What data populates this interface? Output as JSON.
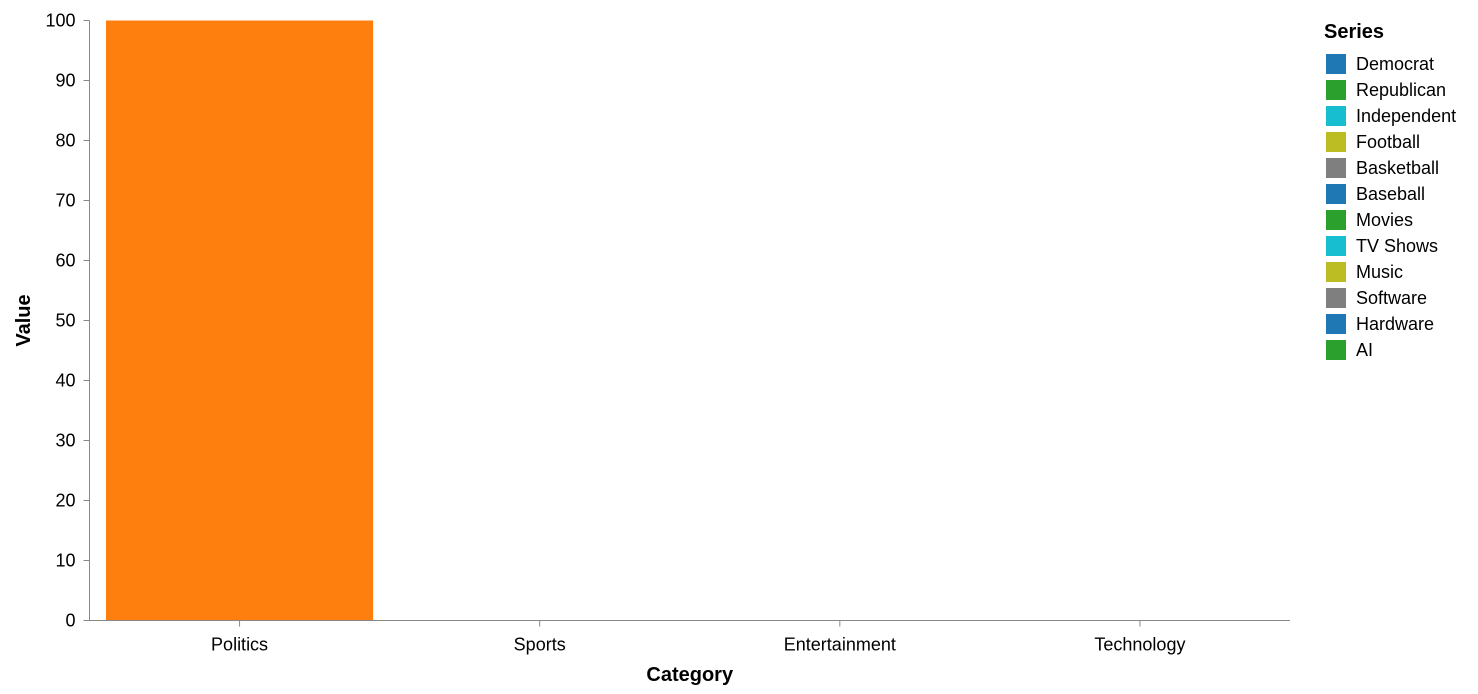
{
  "chart_data": {
    "type": "bar",
    "xlabel": "Category",
    "ylabel": "Value",
    "categories": [
      "Politics",
      "Sports",
      "Entertainment",
      "Technology"
    ],
    "values": [
      100,
      0,
      0,
      0
    ],
    "bar_color": "#ff7f0e",
    "ylim": [
      0,
      100
    ],
    "yticks": [
      0,
      10,
      20,
      30,
      40,
      50,
      60,
      70,
      80,
      90,
      100
    ],
    "grid": false,
    "legend": {
      "title": "Series",
      "placement": "right",
      "items": [
        {
          "name": "Democrat",
          "color": "#1f77b4"
        },
        {
          "name": "Republican",
          "color": "#2ca02c"
        },
        {
          "name": "Independent",
          "color": "#17becf"
        },
        {
          "name": "Football",
          "color": "#bcbd22"
        },
        {
          "name": "Basketball",
          "color": "#7f7f7f"
        },
        {
          "name": "Baseball",
          "color": "#1f77b4"
        },
        {
          "name": "Movies",
          "color": "#2ca02c"
        },
        {
          "name": "TV Shows",
          "color": "#17becf"
        },
        {
          "name": "Music",
          "color": "#bcbd22"
        },
        {
          "name": "Software",
          "color": "#7f7f7f"
        },
        {
          "name": "Hardware",
          "color": "#1f77b4"
        },
        {
          "name": "AI",
          "color": "#2ca02c"
        }
      ]
    }
  }
}
